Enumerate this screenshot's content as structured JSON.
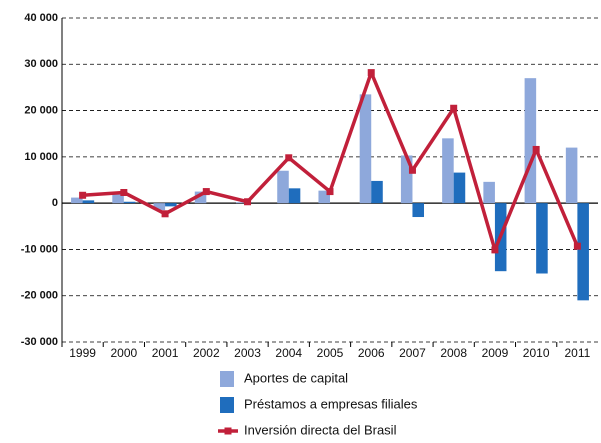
{
  "chart_data": {
    "type": "bar",
    "categories": [
      "1999",
      "2000",
      "2001",
      "2002",
      "2003",
      "2004",
      "2005",
      "2006",
      "2007",
      "2008",
      "2009",
      "2010",
      "2011"
    ],
    "series": [
      {
        "name": "Aportes de capital",
        "type": "bar",
        "color": "#8ea8db",
        "values": [
          1200,
          2000,
          -1500,
          2500,
          200,
          7000,
          2700,
          23500,
          10300,
          14000,
          4600,
          27000,
          12000
        ]
      },
      {
        "name": "Préstamos a empresas filiales",
        "type": "bar",
        "color": "#1f6dbd",
        "values": [
          600,
          300,
          -700,
          0,
          0,
          3200,
          0,
          4800,
          -3000,
          6600,
          -14700,
          -15200,
          -21000
        ]
      },
      {
        "name": "Inversión directa del Brasil",
        "type": "line",
        "color": "#c1203a",
        "values": [
          1700,
          2300,
          -2300,
          2500,
          300,
          9800,
          2500,
          28200,
          7100,
          20500,
          -10100,
          11600,
          -9300
        ]
      }
    ],
    "ylim": [
      -30000,
      40000
    ],
    "yticks": [
      {
        "value": -30000,
        "label": "-30 000"
      },
      {
        "value": -20000,
        "label": "-20 000"
      },
      {
        "value": -10000,
        "label": "-10 000"
      },
      0,
      {
        "value": 10000,
        "label": "10 000"
      },
      {
        "value": 20000,
        "label": "20 000"
      },
      {
        "value": 30000,
        "label": "30 000"
      },
      {
        "value": 40000,
        "label": "40 000"
      }
    ],
    "grid": true,
    "legend": "bottom"
  }
}
